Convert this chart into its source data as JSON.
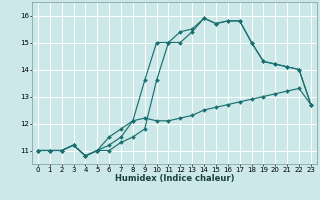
{
  "xlabel": "Humidex (Indice chaleur)",
  "bg_color": "#cce8e8",
  "line_color": "#1a7070",
  "grid_color": "#ffffff",
  "xlim": [
    -0.5,
    23.5
  ],
  "ylim": [
    10.5,
    16.5
  ],
  "xticks": [
    0,
    1,
    2,
    3,
    4,
    5,
    6,
    7,
    8,
    9,
    10,
    11,
    12,
    13,
    14,
    15,
    16,
    17,
    18,
    19,
    20,
    21,
    22,
    23
  ],
  "yticks": [
    11,
    12,
    13,
    14,
    15,
    16
  ],
  "series": [
    {
      "x": [
        0,
        1,
        2,
        3,
        4,
        5,
        6,
        7,
        8,
        9,
        10,
        11,
        12,
        13,
        14,
        15,
        16,
        17,
        18,
        19,
        20,
        21,
        22,
        23
      ],
      "y": [
        11.0,
        11.0,
        11.0,
        11.2,
        10.8,
        11.0,
        11.5,
        11.8,
        12.1,
        12.2,
        12.1,
        12.1,
        12.2,
        12.3,
        12.5,
        12.6,
        12.7,
        12.8,
        12.9,
        13.0,
        13.1,
        13.2,
        13.3,
        12.7
      ]
    },
    {
      "x": [
        0,
        1,
        2,
        3,
        4,
        5,
        6,
        7,
        8,
        9,
        10,
        11,
        12,
        13,
        14,
        15,
        16,
        17,
        18,
        19,
        20,
        21,
        22,
        23
      ],
      "y": [
        11.0,
        11.0,
        11.0,
        11.2,
        10.8,
        11.0,
        11.2,
        11.5,
        12.1,
        13.6,
        15.0,
        15.0,
        15.4,
        15.5,
        15.9,
        15.7,
        15.8,
        15.8,
        15.0,
        14.3,
        14.2,
        14.1,
        14.0,
        12.7
      ]
    },
    {
      "x": [
        0,
        1,
        2,
        3,
        4,
        5,
        6,
        7,
        8,
        9,
        10,
        11,
        12,
        13,
        14,
        15,
        16,
        17,
        18,
        19,
        20,
        21,
        22,
        23
      ],
      "y": [
        11.0,
        11.0,
        11.0,
        11.2,
        10.8,
        11.0,
        11.0,
        11.3,
        11.5,
        11.8,
        13.6,
        15.0,
        15.0,
        15.4,
        15.9,
        15.7,
        15.8,
        15.8,
        15.0,
        14.3,
        14.2,
        14.1,
        14.0,
        12.7
      ]
    }
  ]
}
